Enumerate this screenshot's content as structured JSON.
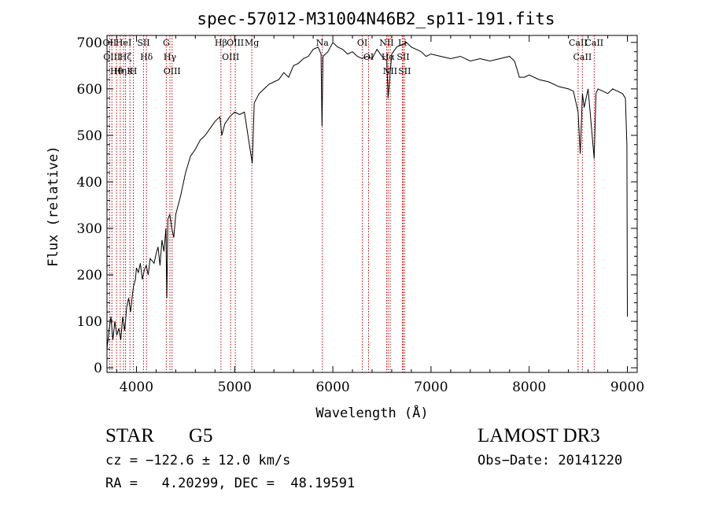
{
  "chart_data": {
    "type": "line",
    "title": "spec-57012-M31004N46B2_sp11-191.fits",
    "xlabel": "Wavelength (Å)",
    "ylabel": "Flux (relative)",
    "xlim": [
      3700,
      9100
    ],
    "ylim": [
      -10,
      715
    ],
    "xticks": [
      4000,
      5000,
      6000,
      7000,
      8000,
      9000
    ],
    "yticks": [
      0,
      100,
      200,
      300,
      400,
      500,
      600,
      700
    ],
    "grid": false,
    "series": [
      {
        "name": "Flux",
        "x": [
          3700,
          3720,
          3740,
          3760,
          3780,
          3800,
          3820,
          3840,
          3860,
          3880,
          3900,
          3920,
          3940,
          3960,
          3970,
          3990,
          4000,
          4020,
          4040,
          4060,
          4080,
          4100,
          4120,
          4140,
          4160,
          4180,
          4200,
          4220,
          4240,
          4260,
          4280,
          4300,
          4310,
          4320,
          4340,
          4360,
          4380,
          4400,
          4450,
          4500,
          4550,
          4600,
          4650,
          4700,
          4750,
          4800,
          4850,
          4870,
          4900,
          4950,
          5000,
          5050,
          5100,
          5150,
          5180,
          5200,
          5250,
          5300,
          5350,
          5400,
          5450,
          5500,
          5550,
          5600,
          5650,
          5700,
          5750,
          5800,
          5850,
          5880,
          5890,
          5900,
          5950,
          6000,
          6050,
          6100,
          6150,
          6200,
          6250,
          6300,
          6350,
          6400,
          6450,
          6500,
          6550,
          6563,
          6600,
          6650,
          6700,
          6750,
          6800,
          6850,
          6900,
          6950,
          7000,
          7100,
          7200,
          7300,
          7400,
          7500,
          7600,
          7700,
          7800,
          7850,
          7880,
          7900,
          7950,
          8000,
          8100,
          8200,
          8300,
          8400,
          8450,
          8498,
          8520,
          8542,
          8560,
          8600,
          8662,
          8680,
          8700,
          8750,
          8800,
          8850,
          8900,
          8950,
          8980,
          8995,
          9000
        ],
        "y": [
          40,
          80,
          110,
          60,
          100,
          70,
          85,
          60,
          110,
          80,
          130,
          150,
          120,
          160,
          175,
          190,
          215,
          205,
          225,
          190,
          210,
          220,
          200,
          235,
          230,
          225,
          245,
          260,
          220,
          275,
          250,
          300,
          150,
          320,
          330,
          300,
          280,
          330,
          370,
          420,
          455,
          470,
          490,
          500,
          515,
          530,
          540,
          500,
          525,
          540,
          550,
          545,
          550,
          480,
          440,
          570,
          590,
          600,
          610,
          615,
          620,
          635,
          625,
          650,
          655,
          665,
          670,
          685,
          690,
          675,
          520,
          670,
          680,
          700,
          690,
          685,
          675,
          680,
          670,
          665,
          670,
          665,
          685,
          670,
          660,
          580,
          675,
          690,
          695,
          700,
          690,
          685,
          680,
          670,
          675,
          670,
          665,
          670,
          660,
          665,
          660,
          665,
          670,
          660,
          640,
          625,
          625,
          630,
          620,
          615,
          605,
          600,
          595,
          550,
          460,
          590,
          560,
          600,
          450,
          590,
          600,
          595,
          590,
          600,
          595,
          590,
          580,
          480,
          110
        ]
      }
    ],
    "lines": [
      {
        "wavelength": 3727,
        "labels": [
          "OII"
        ]
      },
      {
        "wavelength": 3750,
        "labels": [
          "OIII"
        ]
      },
      {
        "wavelength": 3797,
        "labels": [
          "Hθ"
        ]
      },
      {
        "wavelength": 3835,
        "labels": [
          "Hη"
        ]
      },
      {
        "wavelength": 3869,
        "labels": [
          "HeI"
        ]
      },
      {
        "wavelength": 3889,
        "labels": [
          "Hζ"
        ]
      },
      {
        "wavelength": 3934,
        "labels": [
          "K"
        ]
      },
      {
        "wavelength": 3969,
        "labels": [
          "H"
        ]
      },
      {
        "wavelength": 4072,
        "labels": [
          "SII"
        ]
      },
      {
        "wavelength": 4102,
        "labels": [
          "Hδ"
        ]
      },
      {
        "wavelength": 4304,
        "labels": [
          "G"
        ]
      },
      {
        "wavelength": 4341,
        "labels": [
          "Hγ"
        ]
      },
      {
        "wavelength": 4363,
        "labels": [
          "OIII"
        ]
      },
      {
        "wavelength": 4861,
        "labels": [
          "Hβ"
        ]
      },
      {
        "wavelength": 4959,
        "labels": [
          "OIII"
        ]
      },
      {
        "wavelength": 5007,
        "labels": [
          "OIII"
        ]
      },
      {
        "wavelength": 5175,
        "labels": [
          "Mg"
        ]
      },
      {
        "wavelength": 5893,
        "labels": [
          "Na"
        ]
      },
      {
        "wavelength": 6300,
        "labels": [
          "OI"
        ]
      },
      {
        "wavelength": 6364,
        "labels": [
          "OI"
        ]
      },
      {
        "wavelength": 6548,
        "labels": [
          "NII"
        ]
      },
      {
        "wavelength": 6563,
        "labels": [
          "Hα"
        ]
      },
      {
        "wavelength": 6584,
        "labels": [
          "NII"
        ]
      },
      {
        "wavelength": 6708,
        "labels": [
          "Li"
        ]
      },
      {
        "wavelength": 6716,
        "labels": [
          "SII"
        ]
      },
      {
        "wavelength": 6731,
        "labels": [
          "SII"
        ]
      },
      {
        "wavelength": 8498,
        "labels": [
          "CaII"
        ]
      },
      {
        "wavelength": 8542,
        "labels": [
          "CaII"
        ]
      },
      {
        "wavelength": 8662,
        "labels": [
          "CaII"
        ]
      }
    ]
  },
  "info": {
    "class": "STAR",
    "subclass": "G5",
    "survey": "LAMOST DR3",
    "cz": "cz = −122.6 ± 12.0 km/s",
    "obs_date": "Obs−Date: 20141220",
    "coords": "RA =   4.20299, DEC =  48.19591"
  }
}
